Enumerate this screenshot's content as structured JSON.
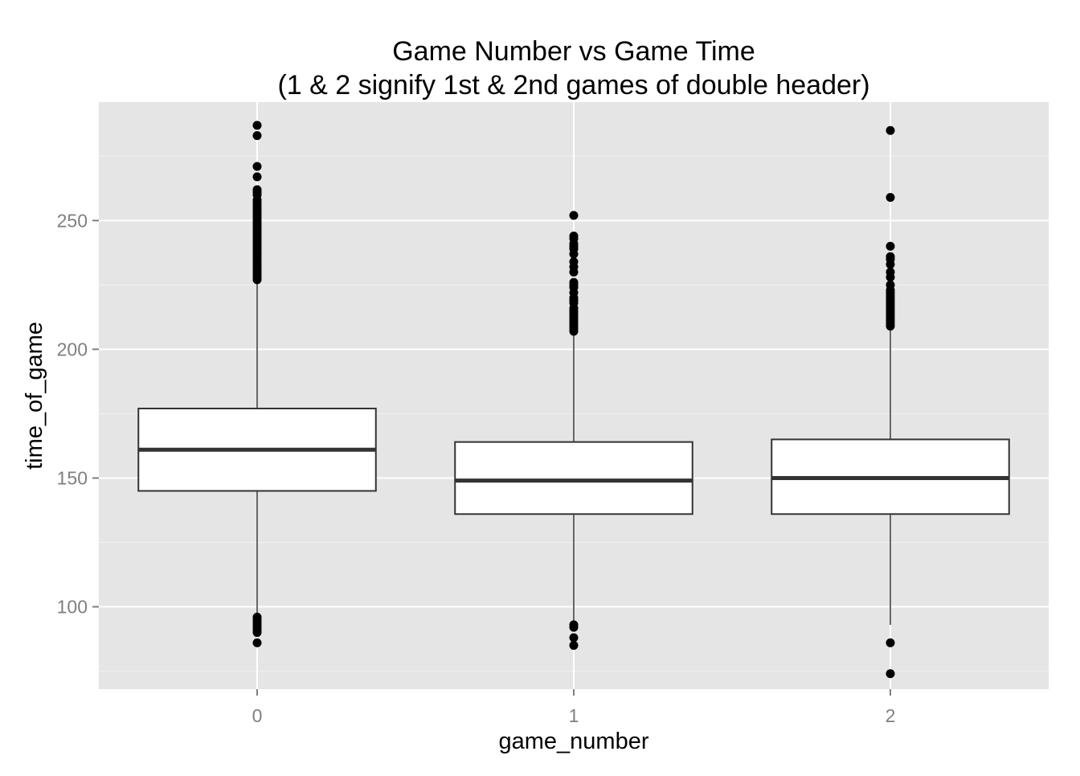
{
  "chart_data": {
    "type": "boxplot",
    "title_line1": "Game Number vs Game Time",
    "title_line2": "(1 & 2 signify 1st & 2nd games of double header)",
    "xlabel": "game_number",
    "ylabel": "time_of_game",
    "categories": [
      "0",
      "1",
      "2"
    ],
    "ylim": [
      68,
      296
    ],
    "yticks": [
      100,
      150,
      200,
      250
    ],
    "ytick_labels": [
      "100",
      "150",
      "200",
      "250"
    ],
    "grid": true,
    "panel_background": "#e5e5e5",
    "grid_color": "#ffffff",
    "box_fill": "#ffffff",
    "box_stroke": "#333333",
    "point_color": "#000000",
    "boxes": [
      {
        "category": "0",
        "q1": 145,
        "median": 161,
        "q3": 177,
        "whisker_low": 96,
        "whisker_high": 226,
        "outliers": [
          287,
          283,
          271,
          267,
          262,
          261,
          260,
          258,
          257,
          256,
          255,
          254,
          253,
          252,
          251,
          250,
          249,
          248,
          247,
          246,
          245,
          244,
          243,
          242,
          241,
          240,
          239,
          238,
          237,
          236,
          235,
          234,
          233,
          232,
          231,
          230,
          229,
          228,
          227,
          96,
          95,
          94,
          93,
          92,
          91,
          90,
          86
        ]
      },
      {
        "category": "1",
        "q1": 136,
        "median": 149,
        "q3": 164,
        "whisker_low": 93,
        "whisker_high": 206,
        "outliers": [
          252,
          244,
          243,
          241,
          240,
          239,
          237,
          234,
          232,
          230,
          226,
          225,
          224,
          222,
          220,
          219,
          218,
          216,
          215,
          214,
          213,
          212,
          211,
          210,
          209,
          208,
          207,
          93,
          92,
          88,
          85
        ]
      },
      {
        "category": "2",
        "q1": 136,
        "median": 150,
        "q3": 165,
        "whisker_low": 93,
        "whisker_high": 208,
        "outliers": [
          285,
          259,
          240,
          236,
          235,
          233,
          230,
          228,
          225,
          223,
          222,
          221,
          220,
          219,
          218,
          217,
          216,
          215,
          214,
          213,
          212,
          211,
          210,
          209,
          86,
          74
        ]
      }
    ]
  }
}
